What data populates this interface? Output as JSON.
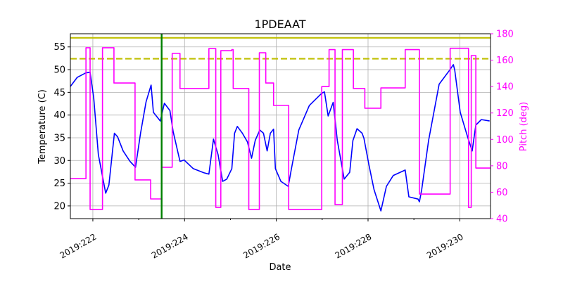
{
  "chart_data": {
    "type": "line",
    "title": "1PDEAAT",
    "xlabel": "Date",
    "ylabel_left": "Temperature (C)",
    "ylabel_right": "Pitch (deg)",
    "xlim": [
      221.51,
      230.67
    ],
    "ylim_left": [
      17.2,
      57.9
    ],
    "ylim_right": [
      40,
      180
    ],
    "grid": true,
    "x_ticks": [
      222,
      224,
      226,
      228,
      230
    ],
    "x_tick_labels": [
      "2019:222",
      "2019:224",
      "2019:226",
      "2019:228",
      "2019:230"
    ],
    "y_left_ticks": [
      20,
      25,
      30,
      35,
      40,
      45,
      50,
      55
    ],
    "y_left_tick_labels": [
      "20",
      "25",
      "30",
      "35",
      "40",
      "45",
      "50",
      "55"
    ],
    "y_right_ticks": [
      40,
      60,
      80,
      100,
      120,
      140,
      160,
      180
    ],
    "y_right_tick_labels": [
      "40",
      "60",
      "80",
      "100",
      "120",
      "140",
      "160",
      "180"
    ],
    "colors": {
      "temperature": "#0000ff",
      "pitch": "#ff00ff",
      "limit": "#bfbf00",
      "marker": "#008000",
      "right_axis": "#ff00ff"
    },
    "hlines": [
      {
        "y": 57.0,
        "style": "solid",
        "color": "#bfbf00"
      },
      {
        "y": 52.4,
        "style": "dashed",
        "color": "#bfbf00"
      }
    ],
    "vlines": [
      {
        "x": 223.5,
        "color": "#008000"
      }
    ],
    "series": [
      {
        "axis": "left",
        "color": "#0000ff",
        "points": [
          [
            221.51,
            46.3
          ],
          [
            221.66,
            48.3
          ],
          [
            221.85,
            49.3
          ],
          [
            221.94,
            49.4
          ],
          [
            222.02,
            43.7
          ],
          [
            222.12,
            31.3
          ],
          [
            222.28,
            22.8
          ],
          [
            222.35,
            24.6
          ],
          [
            222.47,
            36.0
          ],
          [
            222.54,
            35.2
          ],
          [
            222.66,
            32.1
          ],
          [
            222.81,
            29.8
          ],
          [
            222.93,
            28.5
          ],
          [
            223.04,
            36.0
          ],
          [
            223.16,
            42.9
          ],
          [
            223.27,
            46.6
          ],
          [
            223.32,
            40.6
          ],
          [
            223.47,
            38.7
          ],
          [
            223.56,
            42.6
          ],
          [
            223.68,
            41.0
          ],
          [
            223.75,
            36.4
          ],
          [
            223.9,
            29.8
          ],
          [
            223.99,
            30.1
          ],
          [
            224.19,
            28.2
          ],
          [
            224.42,
            27.3
          ],
          [
            224.53,
            27.0
          ],
          [
            224.63,
            34.7
          ],
          [
            224.73,
            31.3
          ],
          [
            224.83,
            25.4
          ],
          [
            224.92,
            25.9
          ],
          [
            225.03,
            28.2
          ],
          [
            225.09,
            36.0
          ],
          [
            225.15,
            37.5
          ],
          [
            225.26,
            36.0
          ],
          [
            225.37,
            34.1
          ],
          [
            225.46,
            30.5
          ],
          [
            225.54,
            34.4
          ],
          [
            225.64,
            36.7
          ],
          [
            225.72,
            36.0
          ],
          [
            225.8,
            32.1
          ],
          [
            225.87,
            36.0
          ],
          [
            225.94,
            36.9
          ],
          [
            225.98,
            28.2
          ],
          [
            226.1,
            25.4
          ],
          [
            226.26,
            24.3
          ],
          [
            226.33,
            28.2
          ],
          [
            226.49,
            36.7
          ],
          [
            226.72,
            42.1
          ],
          [
            226.99,
            44.8
          ],
          [
            227.05,
            45.1
          ],
          [
            227.13,
            39.8
          ],
          [
            227.24,
            42.8
          ],
          [
            227.33,
            34.4
          ],
          [
            227.48,
            25.9
          ],
          [
            227.6,
            27.4
          ],
          [
            227.67,
            34.4
          ],
          [
            227.76,
            37.0
          ],
          [
            227.87,
            36.0
          ],
          [
            227.91,
            34.9
          ],
          [
            228.02,
            29.0
          ],
          [
            228.13,
            23.6
          ],
          [
            228.28,
            18.9
          ],
          [
            228.4,
            24.3
          ],
          [
            228.55,
            26.7
          ],
          [
            228.81,
            27.9
          ],
          [
            228.89,
            22.0
          ],
          [
            229.09,
            21.5
          ],
          [
            229.12,
            20.9
          ],
          [
            229.17,
            23.6
          ],
          [
            229.32,
            34.4
          ],
          [
            229.55,
            46.8
          ],
          [
            229.78,
            49.9
          ],
          [
            229.86,
            51.1
          ],
          [
            229.89,
            49.9
          ],
          [
            230.01,
            40.6
          ],
          [
            230.17,
            35.2
          ],
          [
            230.27,
            32.1
          ],
          [
            230.35,
            37.8
          ],
          [
            230.47,
            39.0
          ],
          [
            230.65,
            38.7
          ]
        ]
      },
      {
        "axis": "right",
        "color": "#ff00ff",
        "step": true,
        "points": [
          [
            221.51,
            70.3
          ],
          [
            221.85,
            169.4
          ],
          [
            221.94,
            46.9
          ],
          [
            222.21,
            169.4
          ],
          [
            222.46,
            142.7
          ],
          [
            222.92,
            69.3
          ],
          [
            223.26,
            54.9
          ],
          [
            223.5,
            78.9
          ],
          [
            223.73,
            165.1
          ],
          [
            223.9,
            138.5
          ],
          [
            224.53,
            168.8
          ],
          [
            224.68,
            48.5
          ],
          [
            224.79,
            167.2
          ],
          [
            225.03,
            168.0
          ],
          [
            225.06,
            138.5
          ],
          [
            225.4,
            46.9
          ],
          [
            225.63,
            165.6
          ],
          [
            225.77,
            142.7
          ],
          [
            225.94,
            125.7
          ],
          [
            226.27,
            46.9
          ],
          [
            226.99,
            140.0
          ],
          [
            227.15,
            168.0
          ],
          [
            227.28,
            50.6
          ],
          [
            227.44,
            168.0
          ],
          [
            227.68,
            138.5
          ],
          [
            227.93,
            123.6
          ],
          [
            228.28,
            139.0
          ],
          [
            228.81,
            168.0
          ],
          [
            229.12,
            58.6
          ],
          [
            229.79,
            169.0
          ],
          [
            230.19,
            48.5
          ],
          [
            230.25,
            163.5
          ],
          [
            230.35,
            78.3
          ],
          [
            230.67,
            78.3
          ]
        ]
      }
    ]
  }
}
